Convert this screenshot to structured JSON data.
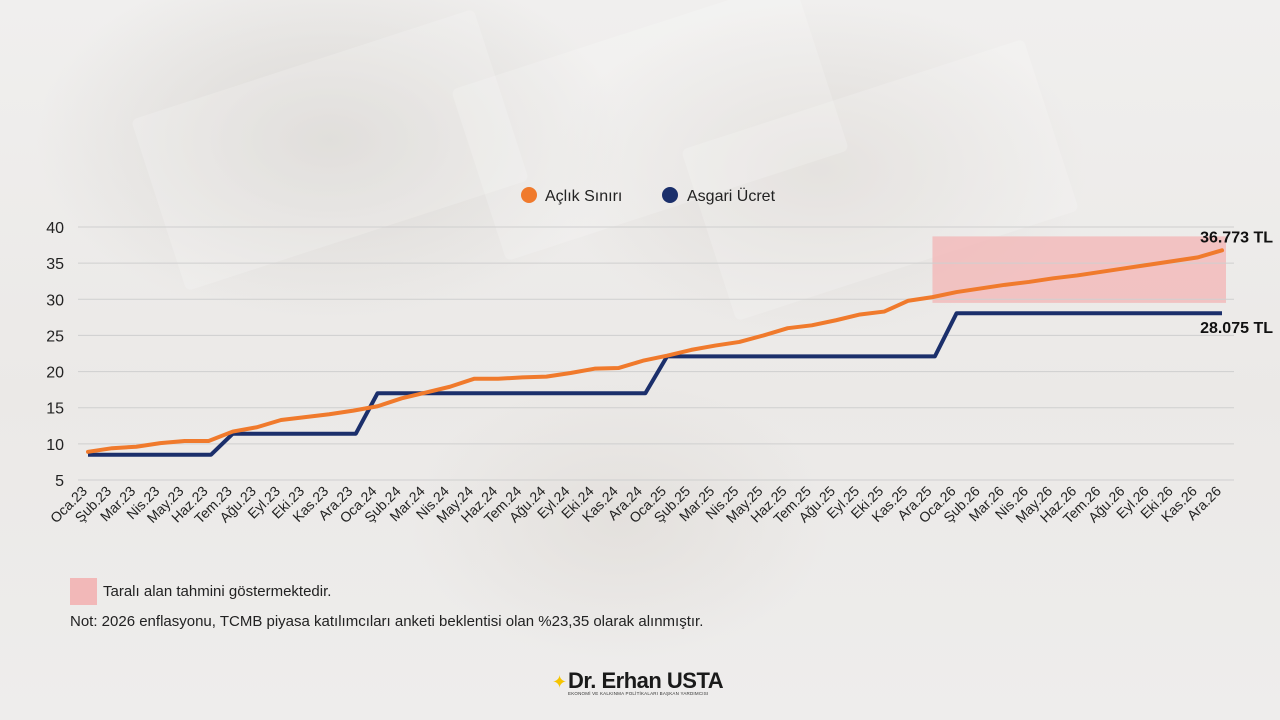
{
  "chart_data": {
    "type": "line",
    "title": "",
    "xlabel": "",
    "ylabel": "",
    "ylim": [
      5,
      40
    ],
    "yticks": [
      "5",
      "10",
      "15",
      "20",
      "25",
      "30",
      "35",
      "40"
    ],
    "grid": true,
    "legend": "top-center",
    "categories": [
      "Oca.23",
      "Şub.23",
      "Mar.23",
      "Nis.23",
      "May.23",
      "Haz.23",
      "Tem.23",
      "Ağu.23",
      "Eyl.23",
      "Eki.23",
      "Kas.23",
      "Ara.23",
      "Oca.24",
      "Şub.24",
      "Mar.24",
      "Nis.24",
      "May.24",
      "Haz.24",
      "Tem.24",
      "Ağu.24",
      "Eyl.24",
      "Eki.24",
      "Kas.24",
      "Ara.24",
      "Oca.25",
      "Şub.25",
      "Mar.25",
      "Nis.25",
      "May.25",
      "Haz.25",
      "Tem.25",
      "Ağu.25",
      "Eyl.25",
      "Eki.25",
      "Kas.25",
      "Ara.25",
      "Oca.26",
      "Şub.26",
      "Mar.26",
      "Nis.26",
      "May.26",
      "Haz.26",
      "Tem.26",
      "Ağu.26",
      "Eyl.26",
      "Eki.26",
      "Kas.26",
      "Ara.26"
    ],
    "series": [
      {
        "name": "Açlık Sınırı",
        "color": "#f07a2c",
        "values": [
          8.9,
          9.4,
          9.6,
          10.1,
          10.4,
          10.4,
          11.7,
          12.3,
          13.3,
          13.7,
          14.1,
          14.6,
          15.2,
          16.3,
          17.1,
          17.9,
          19.0,
          19.0,
          19.2,
          19.3,
          19.8,
          20.4,
          20.5,
          21.5,
          22.2,
          23.0,
          23.6,
          24.1,
          25.0,
          26.0,
          26.4,
          27.1,
          27.9,
          28.3,
          29.8,
          30.3,
          31.0,
          31.5,
          32.0,
          32.4,
          32.9,
          33.3,
          33.8,
          34.3,
          34.8,
          35.3,
          35.8,
          36.773
        ],
        "end_label": "36.773 TL"
      },
      {
        "name": "Asgari Ücret",
        "color": "#1b2f6b",
        "values": [
          8.5,
          8.5,
          8.5,
          8.5,
          8.5,
          8.5,
          11.4,
          11.4,
          11.4,
          11.4,
          11.4,
          11.4,
          17.0,
          17.0,
          17.0,
          17.0,
          17.0,
          17.0,
          17.0,
          17.0,
          17.0,
          17.0,
          17.0,
          17.0,
          22.1,
          22.1,
          22.1,
          22.1,
          22.1,
          22.1,
          22.1,
          22.1,
          22.1,
          22.1,
          22.1,
          22.1,
          28.075,
          28.075,
          28.075,
          28.075,
          28.075,
          28.075,
          28.075,
          28.075,
          28.075,
          28.075,
          28.075,
          28.075
        ],
        "end_label": "28.075 TL"
      }
    ],
    "forecast_band": {
      "x_start": "Ara.25",
      "x_end": "Ara.26",
      "y_low": 29.5,
      "y_high": 38.7,
      "color": "#f2b8b8"
    }
  },
  "footnotes": {
    "legend_text": "Taralı alan tahmini göstermektedir.",
    "note": "Not: 2026 enflasyonu, TCMB piyasa katılımcıları anketi beklentisi olan %23,35 olarak alınmıştır."
  },
  "logo": {
    "name": "Dr. Erhan USTA",
    "tagline": "EKONOMİ VE KALKINMA POLİTİKALARI BAŞKAN YARDIMCISI"
  },
  "icons": {
    "logo_mark": "star-icon"
  }
}
